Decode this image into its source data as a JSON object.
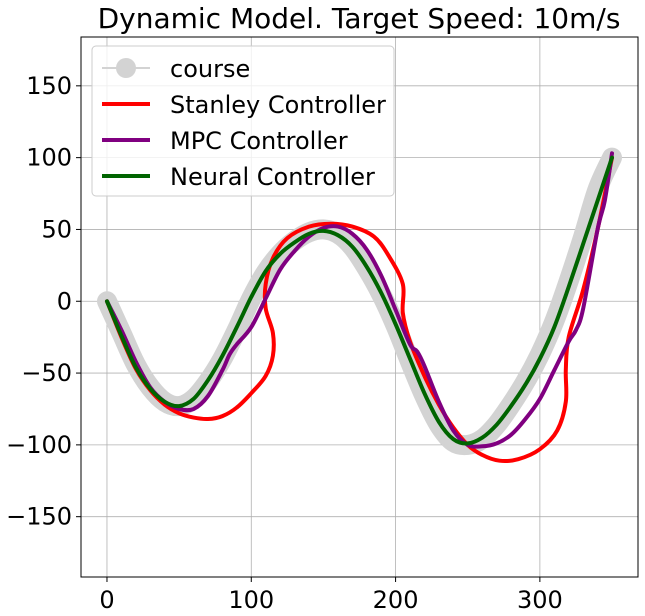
{
  "chart_data": {
    "type": "line",
    "title": "Dynamic Model. Target Speed: 10m/s",
    "xlabel": "",
    "ylabel": "",
    "xlim": [
      -18,
      368
    ],
    "ylim": [
      -192,
      184
    ],
    "xticks": [
      0,
      100,
      200,
      300
    ],
    "yticks": [
      -150,
      -100,
      -50,
      0,
      50,
      100,
      150
    ],
    "xtick_labels": [
      "0",
      "100",
      "200",
      "300"
    ],
    "ytick_labels": [
      "−150",
      "−100",
      "−50",
      "0",
      "50",
      "100",
      "150"
    ],
    "grid": true,
    "legend_position": "top-left",
    "series": [
      {
        "name": "course",
        "color": "#d3d3d3",
        "marker": "circle",
        "x": [
          0,
          10,
          20,
          30,
          40,
          50,
          60,
          70,
          80,
          90,
          100,
          110,
          120,
          130,
          140,
          150,
          160,
          170,
          180,
          190,
          200,
          210,
          220,
          230,
          240,
          250,
          260,
          270,
          280,
          290,
          300,
          310,
          320,
          330,
          340,
          350
        ],
        "y": [
          0,
          -22,
          -44,
          -60,
          -70,
          -73,
          -68,
          -56,
          -40,
          -20,
          2,
          20,
          33,
          42,
          48,
          50,
          47,
          38,
          23,
          5,
          -17,
          -42,
          -66,
          -86,
          -98,
          -100,
          -96,
          -86,
          -72,
          -56,
          -37,
          -14,
          14,
          45,
          78,
          100
        ]
      },
      {
        "name": "Stanley Controller",
        "color": "#ff0000",
        "x": [
          0,
          10,
          20,
          30,
          40,
          50,
          60,
          70,
          80,
          90,
          100,
          110,
          115,
          115,
          110,
          110,
          115,
          125,
          140,
          155,
          170,
          185,
          195,
          205,
          205,
          210,
          220,
          230,
          240,
          250,
          260,
          272,
          285,
          300,
          312,
          318,
          318,
          320,
          330,
          340,
          350
        ],
        "y": [
          0,
          -25,
          -47,
          -62,
          -72,
          -78,
          -81,
          -82,
          -80,
          -74,
          -64,
          -52,
          -38,
          -22,
          -5,
          12,
          30,
          44,
          52,
          54,
          52,
          45,
          32,
          12,
          -8,
          -28,
          -52,
          -72,
          -88,
          -100,
          -107,
          -111,
          -110,
          -103,
          -90,
          -70,
          -48,
          -25,
          8,
          50,
          100
        ]
      },
      {
        "name": "MPC Controller",
        "color": "#800080",
        "x": [
          0,
          10,
          20,
          30,
          40,
          50,
          60,
          70,
          80,
          85,
          90,
          100,
          110,
          120,
          130,
          140,
          150,
          160,
          170,
          180,
          190,
          200,
          210,
          215,
          220,
          230,
          240,
          250,
          260,
          270,
          280,
          290,
          300,
          310,
          320,
          325,
          330,
          340,
          345,
          350
        ],
        "y": [
          0,
          -20,
          -42,
          -60,
          -70,
          -75,
          -75,
          -66,
          -48,
          -37,
          -30,
          -18,
          2,
          22,
          35,
          45,
          51,
          52,
          47,
          36,
          18,
          -6,
          -30,
          -35,
          -45,
          -70,
          -90,
          -100,
          -101,
          -99,
          -93,
          -82,
          -68,
          -48,
          -28,
          -20,
          -5,
          50,
          70,
          103
        ]
      },
      {
        "name": "Neural Controller",
        "color": "#006400",
        "x": [
          0,
          10,
          20,
          30,
          40,
          50,
          60,
          70,
          80,
          90,
          100,
          110,
          120,
          130,
          140,
          150,
          160,
          170,
          180,
          190,
          200,
          210,
          220,
          230,
          240,
          250,
          260,
          270,
          280,
          290,
          300,
          310,
          320,
          330,
          340,
          350
        ],
        "y": [
          0,
          -24,
          -46,
          -61,
          -70,
          -73,
          -68,
          -55,
          -38,
          -18,
          3,
          21,
          33,
          41,
          47,
          49,
          46,
          38,
          24,
          6,
          -16,
          -40,
          -64,
          -84,
          -96,
          -99,
          -95,
          -86,
          -73,
          -58,
          -40,
          -18,
          10,
          40,
          70,
          100
        ]
      }
    ]
  }
}
